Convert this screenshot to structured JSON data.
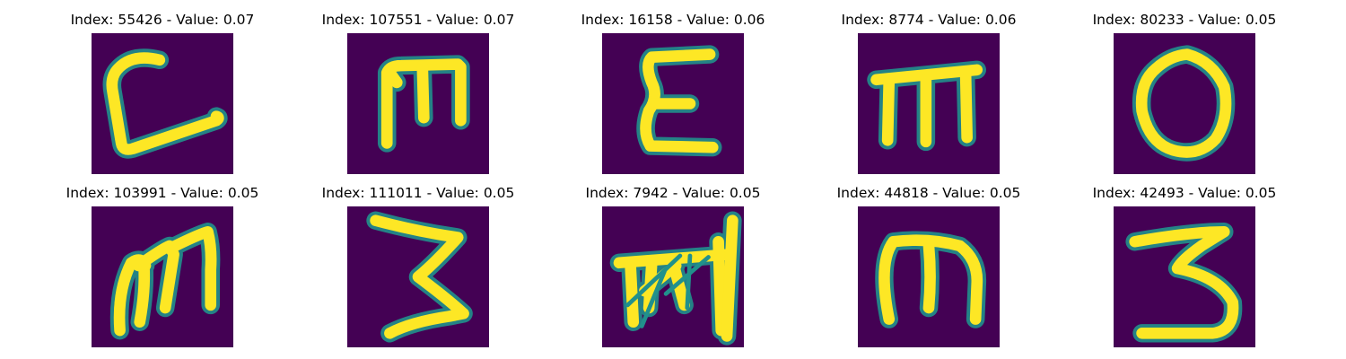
{
  "colors": {
    "background": "#440154",
    "glyph": "#fde725",
    "edge": "#21918c"
  },
  "panels": [
    {
      "title": "Index: 55426 - Value: 0.07",
      "glyph": "glyph-55426-icon"
    },
    {
      "title": "Index: 107551 - Value: 0.07",
      "glyph": "glyph-107551-icon"
    },
    {
      "title": "Index: 16158 - Value: 0.06",
      "glyph": "glyph-16158-icon"
    },
    {
      "title": "Index: 8774 - Value: 0.06",
      "glyph": "glyph-8774-icon"
    },
    {
      "title": "Index: 80233 - Value: 0.05",
      "glyph": "glyph-80233-icon"
    },
    {
      "title": "Index: 103991 - Value: 0.05",
      "glyph": "glyph-103991-icon"
    },
    {
      "title": "Index: 111011 - Value: 0.05",
      "glyph": "glyph-111011-icon"
    },
    {
      "title": "Index: 7942 - Value: 0.05",
      "glyph": "glyph-7942-icon"
    },
    {
      "title": "Index: 44818 - Value: 0.05",
      "glyph": "glyph-44818-icon"
    },
    {
      "title": "Index: 42493 - Value: 0.05",
      "glyph": "glyph-42493-icon"
    }
  ]
}
